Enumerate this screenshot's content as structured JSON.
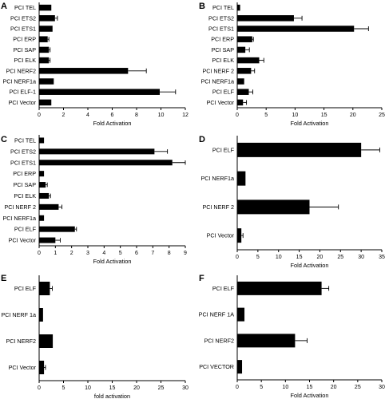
{
  "chart_data": [
    {
      "panel_label": "A",
      "type": "bar",
      "orientation": "horizontal",
      "categories": [
        "PCI TEL",
        "PCI ETS2",
        "PCI ETS1",
        "PCI ERP",
        "PCI SAP",
        "PCI ELK",
        "PCI NERF2",
        "PCI NERF1a",
        "PCI ELF-1",
        "PCI Vector"
      ],
      "values": [
        1.0,
        1.3,
        1.1,
        0.7,
        0.8,
        0.8,
        7.3,
        1.2,
        9.9,
        1.0
      ],
      "errors": [
        0,
        0.2,
        0,
        0.1,
        0.1,
        0.1,
        1.5,
        0,
        1.3,
        0
      ],
      "xlabel": "Fold Activation",
      "xlim": [
        0,
        12
      ],
      "xticks": [
        "0",
        "2",
        "4",
        "6",
        "8",
        "10",
        "12"
      ]
    },
    {
      "panel_label": "B",
      "type": "bar",
      "orientation": "horizontal",
      "categories": [
        "PCI TEL",
        "PCI ETS2",
        "PCI ETS1",
        "PCI ERP",
        "PCI SAP",
        "PCI ELK",
        "PCI NERF 2",
        "PCI NERF1a",
        "PCI ELF",
        "PCI Vector"
      ],
      "values": [
        0.5,
        9.8,
        20.2,
        2.6,
        1.4,
        3.8,
        2.4,
        1.2,
        2.0,
        1.0
      ],
      "errors": [
        0,
        1.4,
        2.5,
        0.2,
        0.7,
        0.8,
        0.6,
        0,
        0.7,
        0.6
      ],
      "xlabel": "Fold Activation",
      "xlim": [
        0,
        25
      ],
      "xticks": [
        "0",
        "5",
        "10",
        "15",
        "20",
        "25"
      ]
    },
    {
      "panel_label": "C",
      "type": "bar",
      "orientation": "horizontal",
      "categories": [
        "PCI TEL",
        "PCI ETS2",
        "PCI ETS1",
        "PCI ERP",
        "PCI SAP",
        "PCI ELK",
        "PCI NERF 2",
        "PCI NERF1a",
        "PCI ELF",
        "PCI Vector"
      ],
      "values": [
        0.3,
        7.1,
        8.2,
        0.3,
        0.4,
        0.6,
        1.2,
        0.3,
        2.2,
        1.0
      ],
      "errors": [
        0,
        0.8,
        0.8,
        0,
        0.1,
        0.1,
        0.2,
        0,
        0.1,
        0.3
      ],
      "xlabel": "Fold Activation",
      "xlim": [
        0,
        9
      ],
      "xticks": [
        "0",
        "1",
        "2",
        "3",
        "4",
        "5",
        "6",
        "7",
        "8",
        "9"
      ]
    },
    {
      "panel_label": "D",
      "type": "bar",
      "orientation": "horizontal",
      "categories": [
        "PCI ELF",
        "PCI NERF1a",
        "PCI NERF 2",
        "PCI Vector"
      ],
      "values": [
        30.0,
        2.0,
        17.5,
        1.0
      ],
      "errors": [
        4.5,
        0,
        7.0,
        0.4
      ],
      "xlabel": "Fold Activation",
      "xlim": [
        0,
        35
      ],
      "xticks": [
        "0",
        "5",
        "10",
        "15",
        "20",
        "25",
        "30",
        "35"
      ]
    },
    {
      "panel_label": "E",
      "type": "bar",
      "orientation": "horizontal",
      "categories": [
        "PCI ELF",
        "PCI NERF 1a",
        "PCI NERF2",
        "PCI Vector"
      ],
      "values": [
        2.2,
        0.8,
        2.8,
        1.0
      ],
      "errors": [
        0.5,
        0,
        0,
        0.3
      ],
      "xlabel": "fold activation",
      "xlim": [
        0,
        30
      ],
      "xticks": [
        "0",
        "5",
        "10",
        "15",
        "20",
        "25",
        "30"
      ]
    },
    {
      "panel_label": "F",
      "type": "bar",
      "orientation": "horizontal",
      "categories": [
        "PCI ELF",
        "PCI NERF 1A",
        "PCI NERF2",
        "PCI VECTOR"
      ],
      "values": [
        17.5,
        1.5,
        12.0,
        1.0
      ],
      "errors": [
        1.5,
        0,
        2.5,
        0
      ],
      "xlabel": "Fold Activation",
      "xlim": [
        0,
        30
      ],
      "xticks": [
        "0",
        "5",
        "10",
        "15",
        "20",
        "25",
        "30"
      ]
    }
  ]
}
